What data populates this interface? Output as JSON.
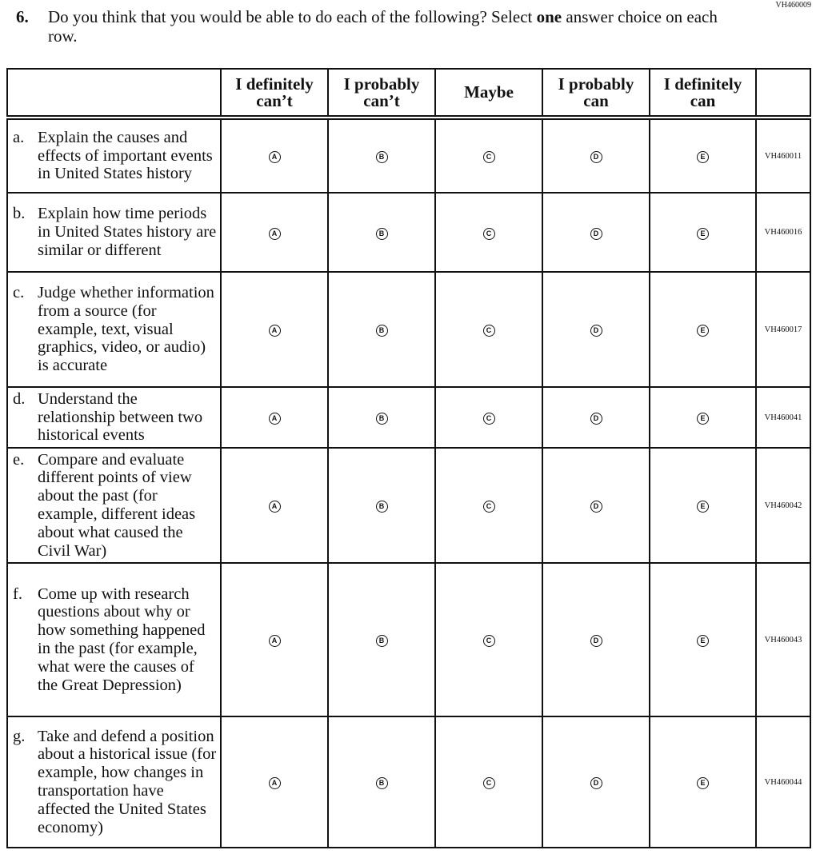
{
  "page_code": "VH460009",
  "question": {
    "number": "6.",
    "text_before": "Do you think that you would be able to do each of the following? Select ",
    "text_bold": "one",
    "text_after": " answer choice on each row."
  },
  "columns": [
    {
      "line1": "I definitely",
      "line2": "can’t",
      "bubble": "A"
    },
    {
      "line1": "I probably",
      "line2": "can’t",
      "bubble": "B"
    },
    {
      "line1": "Maybe",
      "line2": "",
      "bubble": "C"
    },
    {
      "line1": "I probably",
      "line2": "can",
      "bubble": "D"
    },
    {
      "line1": "I definitely",
      "line2": "can",
      "bubble": "E"
    }
  ],
  "rows": [
    {
      "letter": "a.",
      "text": "Explain the causes and effects of important events in United States history",
      "code": "VH460011"
    },
    {
      "letter": "b.",
      "text": "Explain how time periods in United States history are similar or different",
      "code": "VH460016"
    },
    {
      "letter": "c.",
      "text": "Judge whether information from a source (for example, text, visual graphics, video, or audio) is accurate",
      "code": "VH460017"
    },
    {
      "letter": "d.",
      "text": "Understand the relationship between two historical events",
      "code": "VH460041"
    },
    {
      "letter": "e.",
      "text": "Compare and evaluate different points of view about the past (for example, different ideas about what caused the Civil War)",
      "code": "VH460042"
    },
    {
      "letter": "f.",
      "text": "Come up with research questions about why or how something happened in the past (for example, what were the causes of the Great Depression)",
      "code": "VH460043"
    },
    {
      "letter": "g.",
      "text": "Take and defend a position about a historical issue (for example, how changes in transportation have affected the United States economy)",
      "code": "VH460044"
    }
  ]
}
